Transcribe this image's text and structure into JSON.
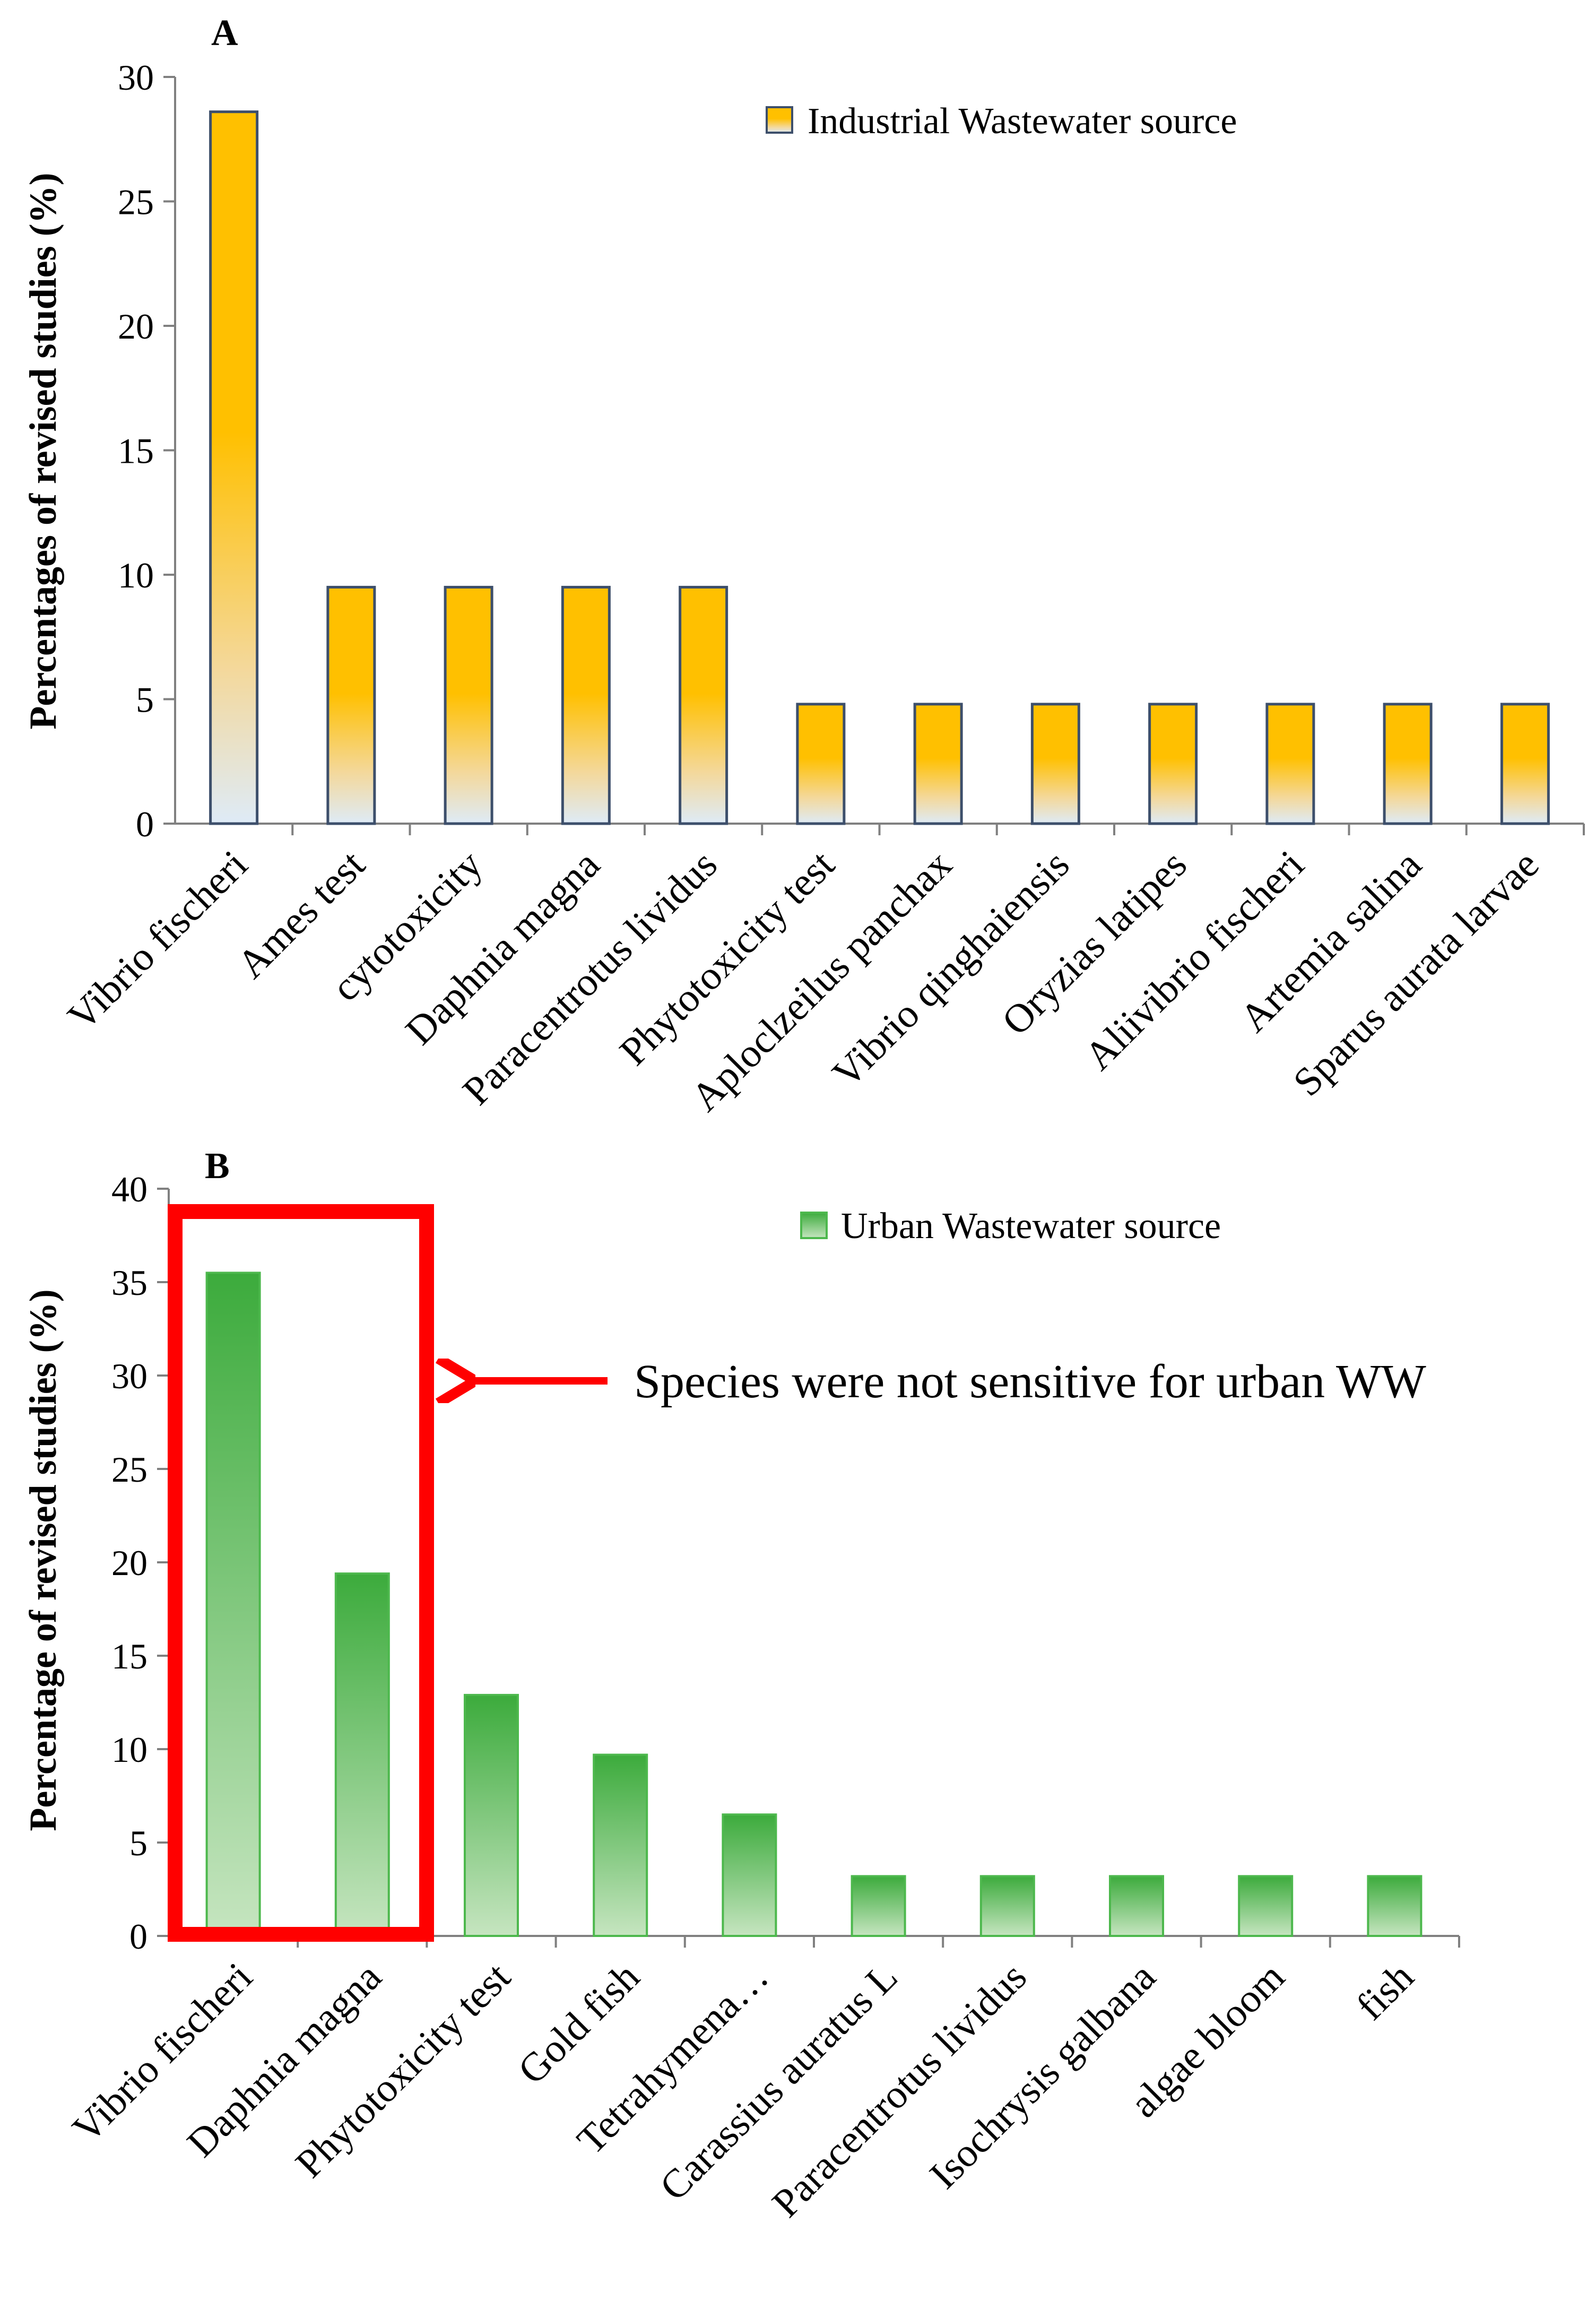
{
  "chart_data": [
    {
      "type": "bar",
      "panel": "A",
      "title": "",
      "xlabel": "",
      "ylabel": "Percentages of revised studies (%)",
      "ylim": [
        0,
        30
      ],
      "yticks": [
        0,
        5,
        10,
        15,
        20,
        25,
        30
      ],
      "grid": false,
      "legend": {
        "position": "top-right",
        "entries": [
          "Industrial Wastewater source"
        ]
      },
      "categories": [
        "Vibrio fischeri",
        "Ames test",
        "cytotoxicity",
        "Daphnia magna",
        "Paracentrotus lividus",
        "Phytotoxicity test",
        "Aploclzeilus panchax",
        "Vibrio qinghaiensis",
        "Oryzias latipes",
        "Aliivibrio fischeri",
        "Artemia salina",
        "Sparus aurata larvae"
      ],
      "series": [
        {
          "name": "Industrial Wastewater source",
          "values": [
            28.6,
            9.5,
            9.5,
            9.5,
            9.5,
            4.8,
            4.8,
            4.8,
            4.8,
            4.8,
            4.8,
            4.8
          ]
        }
      ],
      "colors": {
        "fill_top": "#FFC000",
        "fill_bottom": "#DEEBF7",
        "stroke": "#3D4F6B"
      }
    },
    {
      "type": "bar",
      "panel": "B",
      "title": "",
      "xlabel": "",
      "ylabel": "Percentage of revised studies (%)",
      "ylim": [
        0,
        40
      ],
      "yticks": [
        0,
        5,
        10,
        15,
        20,
        25,
        30,
        35,
        40
      ],
      "grid": false,
      "legend": {
        "position": "top-right",
        "entries": [
          "Urban Wastewater source"
        ]
      },
      "categories": [
        "Vibrio fischeri",
        "Daphnia magna",
        "Phytotoxicity test",
        "Gold fish",
        "Tetrahymena…",
        "Carassius auratus L",
        "Paracentrotus lividus",
        "Isochrysis galbana",
        "algae bloom",
        "fish"
      ],
      "series": [
        {
          "name": "Urban Wastewater source",
          "values": [
            35.5,
            19.4,
            12.9,
            9.7,
            6.5,
            3.2,
            3.2,
            3.2,
            3.2,
            3.2
          ]
        }
      ],
      "annotations": [
        {
          "text": "Species were not sensitive for urban WW",
          "highlight_categories": [
            "Vibrio fischeri",
            "Daphnia magna"
          ]
        }
      ],
      "colors": {
        "fill_top": "#3CAB3C",
        "fill_bottom": "#C6E5C0",
        "stroke": "#4DB84D",
        "highlight": "#FF0000"
      }
    }
  ]
}
